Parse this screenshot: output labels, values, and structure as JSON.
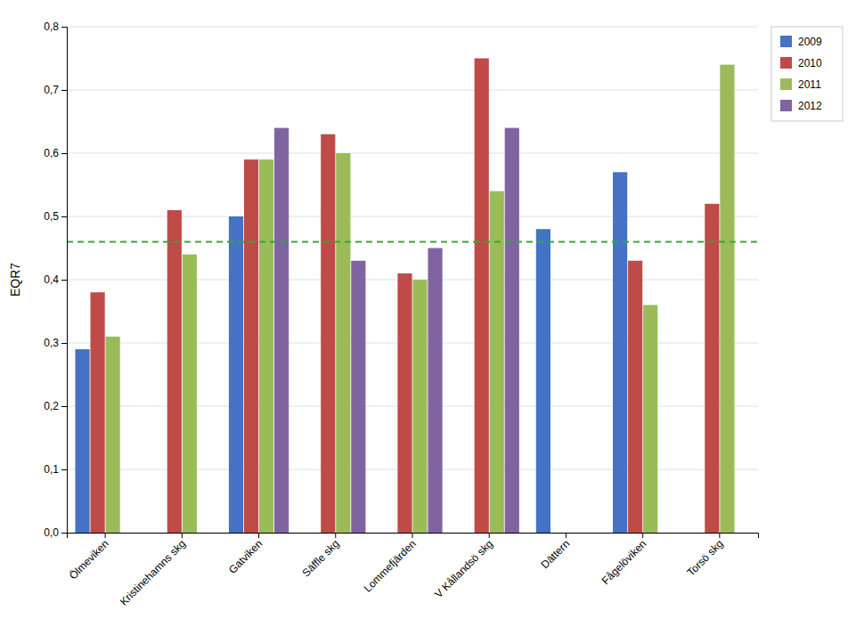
{
  "chart_data": {
    "type": "bar",
    "categories": [
      "Ölmeviken",
      "Kristinehamns skg",
      "Gatviken",
      "Säffle skg",
      "Lommefjärden",
      "V Kållandsö skg",
      "Dättern",
      "Fågelöviken",
      "Torsö skg"
    ],
    "series": [
      {
        "name": "2009",
        "color": "#4472C4",
        "values": [
          0.29,
          null,
          0.5,
          null,
          null,
          null,
          0.48,
          0.57,
          null
        ]
      },
      {
        "name": "2010",
        "color": "#BE4B48",
        "values": [
          0.38,
          0.51,
          0.59,
          0.63,
          0.41,
          0.75,
          null,
          0.43,
          0.52
        ]
      },
      {
        "name": "2011",
        "color": "#9BBB59",
        "values": [
          0.31,
          0.44,
          0.59,
          0.6,
          0.4,
          0.54,
          null,
          0.36,
          0.74
        ]
      },
      {
        "name": "2012",
        "color": "#8064A2",
        "values": [
          null,
          null,
          0.64,
          0.43,
          0.45,
          0.64,
          null,
          null,
          null
        ]
      }
    ],
    "ylabel": "EQR7",
    "ylim": [
      0,
      0.8
    ],
    "yticks": [
      {
        "value": 0,
        "label": "0,0"
      },
      {
        "value": 0.1,
        "label": "0,1"
      },
      {
        "value": 0.2,
        "label": "0,2"
      },
      {
        "value": 0.3,
        "label": "0,3"
      },
      {
        "value": 0.4,
        "label": "0,4"
      },
      {
        "value": 0.5,
        "label": "0,5"
      },
      {
        "value": 0.6,
        "label": "0,6"
      },
      {
        "value": 0.7,
        "label": "0,7"
      },
      {
        "value": 0.8,
        "label": "0,8"
      }
    ],
    "grid": true,
    "legend": "upper right",
    "hlines": [
      {
        "value": 0.46,
        "color": "#33AA33",
        "line_style": "dashed"
      }
    ]
  }
}
